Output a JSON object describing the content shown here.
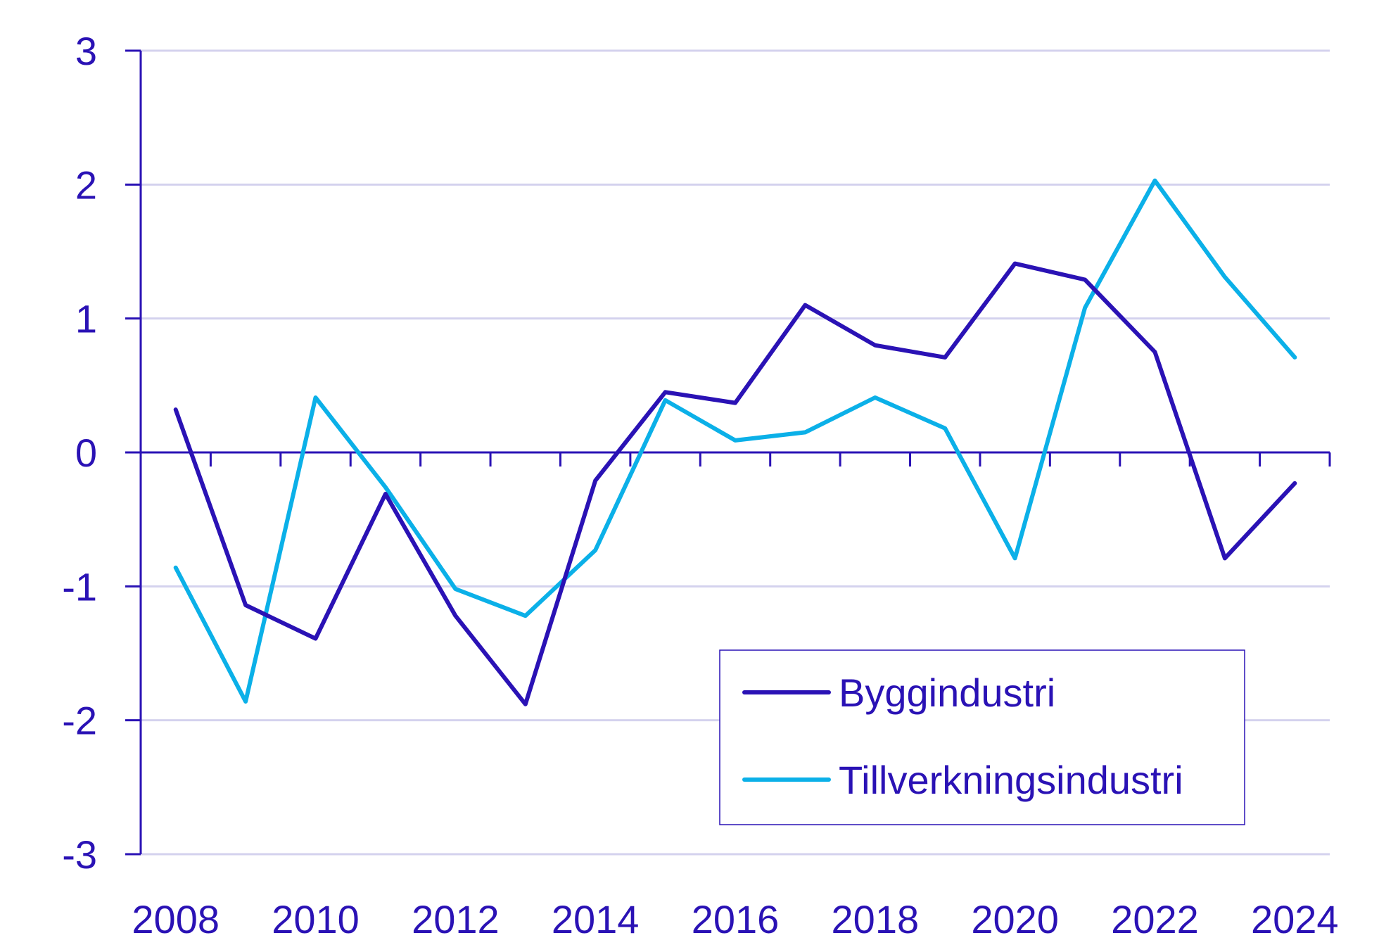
{
  "chart_data": {
    "type": "line",
    "title": "",
    "xlabel": "",
    "ylabel": "",
    "x": [
      2008,
      2009,
      2010,
      2011,
      2012,
      2013,
      2014,
      2015,
      2016,
      2017,
      2018,
      2019,
      2020,
      2021,
      2022,
      2023,
      2024
    ],
    "xticks": [
      "2008",
      "2010",
      "2012",
      "2014",
      "2016",
      "2018",
      "2020",
      "2022",
      "2024"
    ],
    "yticks": [
      "3",
      "2",
      "1",
      "0",
      "-1",
      "-2",
      "-3"
    ],
    "ylim": [
      -3,
      3
    ],
    "xlim": [
      2007.5,
      2024.5
    ],
    "grid": true,
    "legend_position": "bottom-right",
    "colors": {
      "axis": "#2a12b5",
      "text": "#2a12b5",
      "grid": "#d4d2ee"
    },
    "series": [
      {
        "name": "Byggindustri",
        "color": "#2a12b5",
        "values": [
          0.32,
          -1.14,
          -1.39,
          -0.31,
          -1.22,
          -1.88,
          -0.21,
          0.45,
          0.37,
          1.1,
          0.8,
          0.71,
          1.41,
          1.29,
          0.75,
          -0.79,
          -0.23
        ]
      },
      {
        "name": "Tillverkningsindustri",
        "color": "#0bb0e8",
        "values": [
          -0.86,
          -1.86,
          0.41,
          -0.26,
          -1.02,
          -1.22,
          -0.73,
          0.39,
          0.09,
          0.15,
          0.41,
          0.18,
          -0.79,
          1.08,
          2.03,
          1.31,
          0.71
        ]
      }
    ]
  }
}
